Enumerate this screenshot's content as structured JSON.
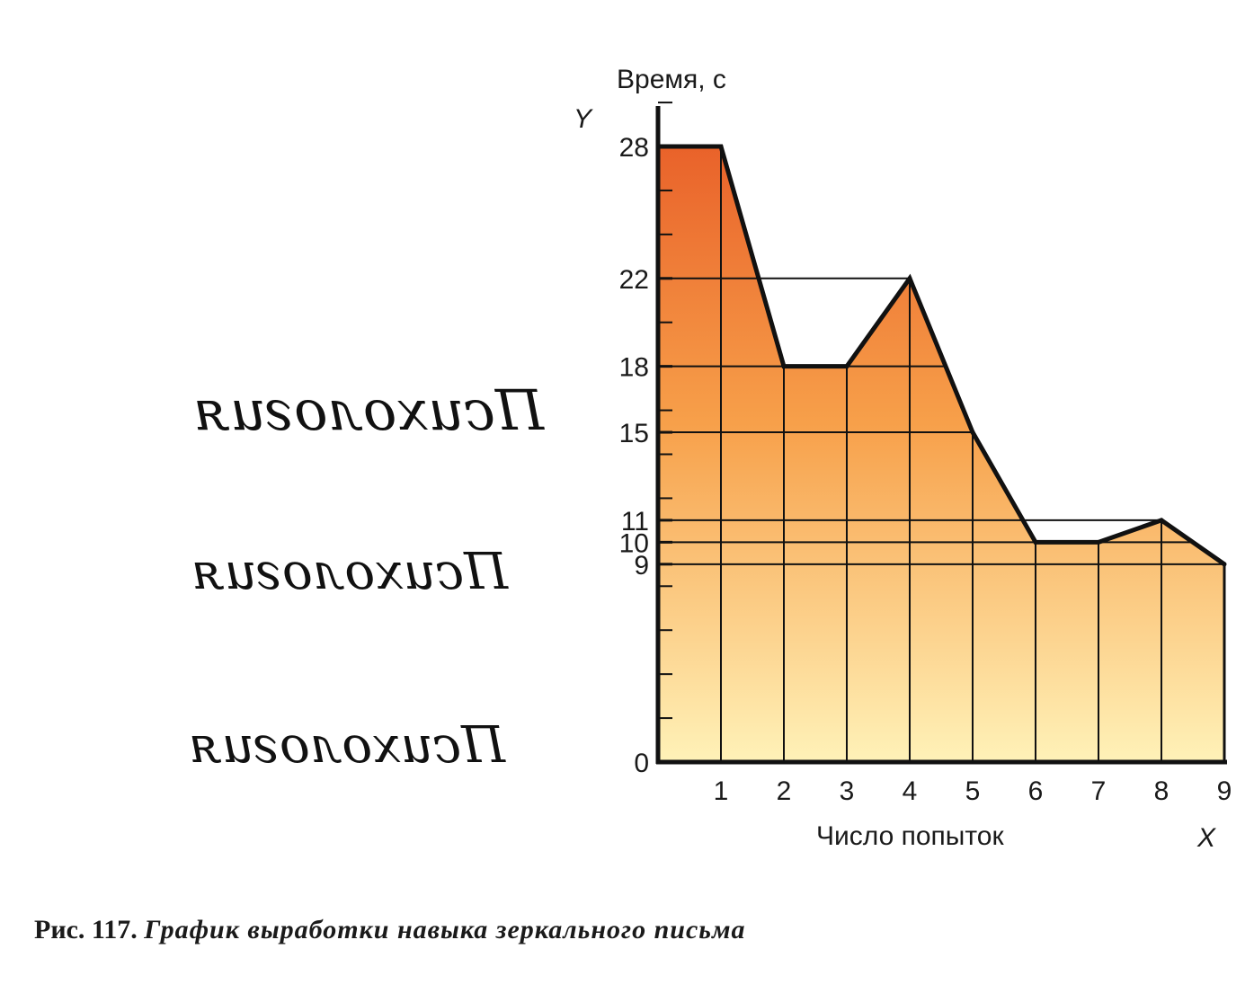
{
  "mirror_words": [
    "Психология",
    "Психология",
    "Психология"
  ],
  "caption": {
    "number": "Рис. 117.",
    "text": "График выработки навыка зеркального письма"
  },
  "colors": {
    "fill_top": "#e9622a",
    "fill_mid": "#f7a04a",
    "fill_bottom": "#fff2b8",
    "line": "#111111"
  },
  "chart_data": {
    "type": "area",
    "ylabel": "Время, с",
    "xlabel": "Число попыток",
    "x_axis_letter": "X",
    "y_axis_letter": "Y",
    "x": [
      1,
      2,
      3,
      4,
      5,
      6,
      7,
      8,
      9
    ],
    "y": [
      28,
      18,
      18,
      22,
      15,
      10,
      10,
      11,
      9
    ],
    "x_ticks": [
      "1",
      "2",
      "3",
      "4",
      "5",
      "6",
      "7",
      "8",
      "9"
    ],
    "y_ticks": [
      "0",
      "9",
      "10",
      "11",
      "15",
      "18",
      "22",
      "28"
    ],
    "xlim": [
      0,
      9
    ],
    "ylim": [
      0,
      28
    ],
    "grid": true,
    "fill": "orange-to-yellow gradient"
  }
}
